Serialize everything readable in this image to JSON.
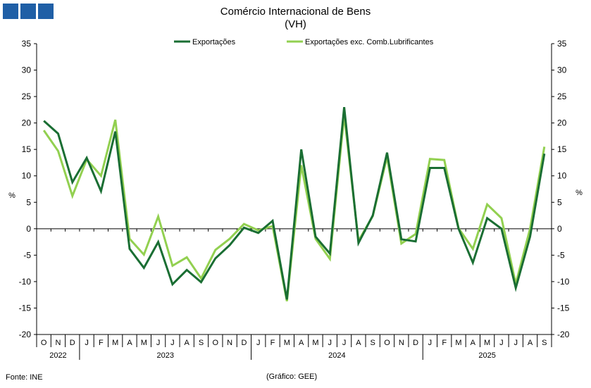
{
  "logo": {
    "name": "ine-logo-squares",
    "color": "#1f5fa6",
    "count": 3
  },
  "title": "Comércio Internacional de Bens",
  "subtitle": "(VH)",
  "source": "Fonte: INE",
  "credit": "(Gráfico: GEE)",
  "chart_data": {
    "type": "line",
    "categories": [
      "O",
      "N",
      "D",
      "J",
      "F",
      "M",
      "A",
      "M",
      "J",
      "J",
      "A",
      "S",
      "O",
      "N",
      "D",
      "J",
      "F",
      "M",
      "A",
      "M",
      "J",
      "J",
      "A",
      "S",
      "O",
      "N",
      "D",
      "J",
      "F",
      "M",
      "A",
      "M",
      "J",
      "J",
      "A",
      "S"
    ],
    "years": [
      {
        "label": "2022",
        "from": 0,
        "to": 2
      },
      {
        "label": "2023",
        "from": 3,
        "to": 14
      },
      {
        "label": "2024",
        "from": 15,
        "to": 26
      },
      {
        "label": "2025",
        "from": 27,
        "to": 35
      }
    ],
    "series": [
      {
        "name": "Exportações",
        "color": "#1a6e33",
        "values": [
          20.4,
          18.0,
          8.8,
          13.4,
          7.1,
          18.4,
          -3.8,
          -7.4,
          -2.5,
          -10.5,
          -7.8,
          -10.1,
          -5.6,
          -3.1,
          0.2,
          -0.8,
          1.5,
          -13.4,
          15.0,
          -1.5,
          -4.7,
          23.0,
          -2.7,
          2.5,
          14.4,
          -2.0,
          -2.4,
          11.5,
          11.5,
          0.0,
          -6.4,
          2.0,
          0.0,
          -11.2,
          -1.5,
          14.2
        ]
      },
      {
        "name": "Exportações exc. Comb.Lubrificantes",
        "color": "#92d050",
        "values": [
          18.6,
          14.7,
          6.2,
          13.1,
          10.0,
          20.6,
          -1.9,
          -4.9,
          2.3,
          -7.0,
          -5.4,
          -9.4,
          -4.0,
          -1.9,
          0.9,
          -0.3,
          0.5,
          -13.7,
          12.0,
          -1.9,
          -5.7,
          21.5,
          -2.3,
          2.4,
          13.6,
          -2.8,
          -1.0,
          13.2,
          13.0,
          0.1,
          -3.8,
          4.6,
          2.0,
          -10.4,
          0.0,
          15.5
        ]
      }
    ],
    "ylim": [
      -20,
      35
    ],
    "yticks": [
      -20,
      -15,
      -10,
      -5,
      0,
      5,
      10,
      15,
      20,
      25,
      30,
      35
    ],
    "ylabel_left": "%",
    "ylabel_right": "%",
    "legend_position": "top-center",
    "grid": false
  }
}
